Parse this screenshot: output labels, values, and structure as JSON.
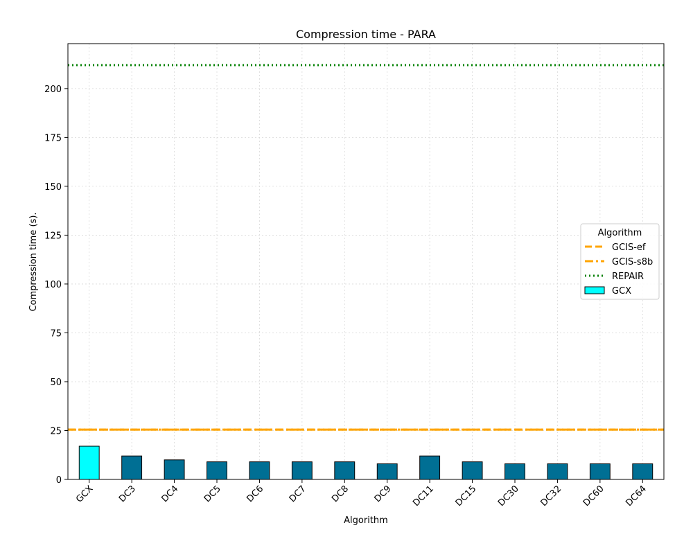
{
  "chart_data": {
    "type": "bar",
    "title": "Compression time -  PARA",
    "xlabel": "Algorithm",
    "ylabel": "Compression time (s).",
    "categories": [
      "GCX",
      "DC3",
      "DC4",
      "DC5",
      "DC6",
      "DC7",
      "DC8",
      "DC9",
      "DC11",
      "DC15",
      "DC30",
      "DC32",
      "DC60",
      "DC64"
    ],
    "values": [
      17,
      12,
      10,
      9,
      9,
      9,
      9,
      8,
      12,
      9,
      8,
      8,
      8,
      8
    ],
    "bar_colors": [
      "#00ffff",
      "#006f94",
      "#006f94",
      "#006f94",
      "#006f94",
      "#006f94",
      "#006f94",
      "#006f94",
      "#006f94",
      "#006f94",
      "#006f94",
      "#006f94",
      "#006f94",
      "#006f94"
    ],
    "ylim": [
      0,
      223
    ],
    "yticks": [
      0,
      25,
      50,
      75,
      100,
      125,
      150,
      175,
      200
    ],
    "grid": true,
    "reference_lines": [
      {
        "name": "GCIS-ef",
        "value": 25.5,
        "color": "#ffa500",
        "style": "dashed"
      },
      {
        "name": "GCIS-s8b",
        "value": 25.5,
        "color": "#ffa500",
        "style": "dashdot"
      },
      {
        "name": "REPAIR",
        "value": 212,
        "color": "#008000",
        "style": "dotted"
      }
    ],
    "legend": {
      "title": "Algorithm",
      "placement": "center-right",
      "entries": [
        {
          "label": "GCIS-ef",
          "kind": "line",
          "color": "#ffa500",
          "style": "dashed"
        },
        {
          "label": "GCIS-s8b",
          "kind": "line",
          "color": "#ffa500",
          "style": "dashdot"
        },
        {
          "label": "REPAIR",
          "kind": "line",
          "color": "#008000",
          "style": "dotted"
        },
        {
          "label": "GCX",
          "kind": "patch",
          "color": "#00ffff"
        }
      ]
    }
  }
}
